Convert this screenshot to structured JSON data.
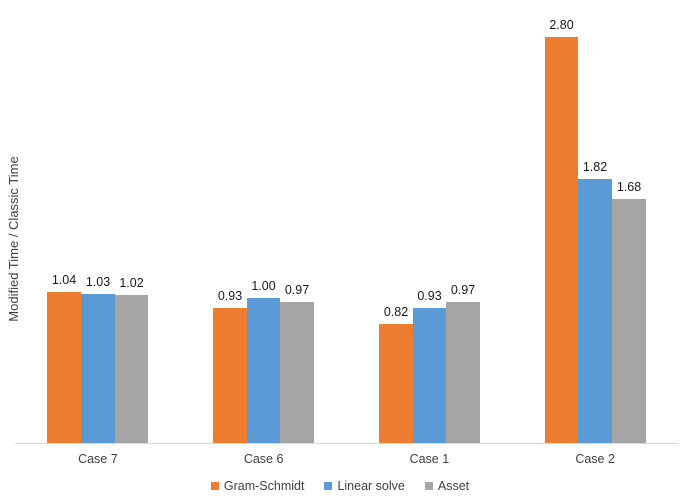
{
  "chart_data": {
    "type": "bar",
    "title": "",
    "xlabel": "",
    "ylabel": "Modified Time / Classic Time",
    "categories": [
      "Case 7",
      "Case 6",
      "Case 1",
      "Case 2"
    ],
    "series": [
      {
        "name": "Gram-Schmidt",
        "color": "#ED7D31",
        "values": [
          1.04,
          0.93,
          0.82,
          2.8
        ]
      },
      {
        "name": "Linear solve",
        "color": "#5B9BD5",
        "values": [
          1.03,
          1.0,
          0.93,
          1.82
        ]
      },
      {
        "name": "Asset",
        "color": "#A5A5A5",
        "values": [
          1.02,
          0.97,
          0.97,
          1.68
        ]
      }
    ],
    "value_label_format": "0.00",
    "ylim": [
      0,
      3.0
    ],
    "grid": false,
    "y_axis_ticks_visible": false,
    "legend_position": "bottom",
    "axis_line_color": "#D9D9D9",
    "text_color": "#404040"
  }
}
